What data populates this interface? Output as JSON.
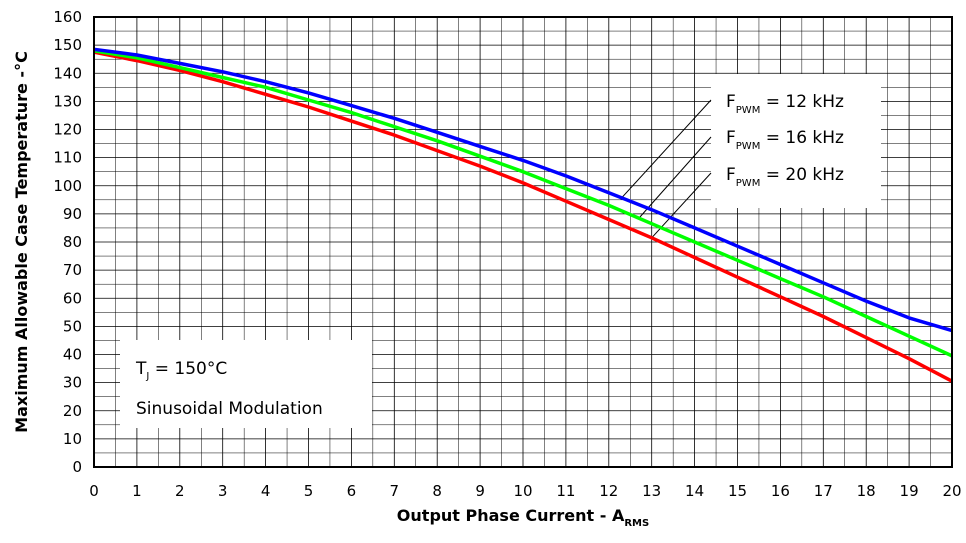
{
  "chart_data": {
    "type": "line",
    "xlabel": "Output Phase Current - A",
    "xlabel_sub": "RMS",
    "ylabel": "Maximum Allowable Case Temperature -°C",
    "xlim": [
      0,
      20
    ],
    "ylim": [
      0,
      160
    ],
    "x_ticks": [
      0,
      1,
      2,
      3,
      4,
      5,
      6,
      7,
      8,
      9,
      10,
      11,
      12,
      13,
      14,
      15,
      16,
      17,
      18,
      19,
      20
    ],
    "y_ticks": [
      0,
      10,
      20,
      30,
      40,
      50,
      60,
      70,
      80,
      90,
      100,
      110,
      120,
      130,
      140,
      150,
      160
    ],
    "grid": true,
    "x": [
      0,
      1,
      2,
      3,
      4,
      5,
      6,
      7,
      8,
      9,
      10,
      11,
      12,
      13,
      14,
      15,
      16,
      17,
      18,
      19,
      20
    ],
    "series": [
      {
        "name": "12 kHz",
        "label_prefix": "F",
        "label_sub": "PWM",
        "label_rest": " = 12 kHz",
        "color": "#0000ff",
        "values": [
          148.5,
          146.5,
          143.5,
          140.5,
          137,
          133,
          128.5,
          124,
          119,
          114,
          109,
          103.5,
          97.5,
          91.5,
          85,
          78.5,
          72,
          65.5,
          59,
          53,
          48.5
        ]
      },
      {
        "name": "16 kHz",
        "label_prefix": "F",
        "label_sub": "PWM",
        "label_rest": " = 16 kHz",
        "color": "#00ff00",
        "values": [
          148,
          145.5,
          142,
          138.5,
          135,
          130.5,
          126,
          121,
          116,
          110.5,
          105,
          99,
          93,
          86.5,
          80,
          73.5,
          67,
          60.5,
          53.5,
          46.5,
          39.5
        ]
      },
      {
        "name": "20 kHz",
        "label_prefix": "F",
        "label_sub": "PWM",
        "label_rest": " = 20 kHz",
        "color": "#ff0000",
        "values": [
          147.5,
          144.5,
          141,
          137,
          132.5,
          128,
          123,
          118,
          112.5,
          107,
          101,
          94.5,
          88,
          81.5,
          74.5,
          67.5,
          60.5,
          53.5,
          46,
          38.5,
          30.5
        ]
      }
    ],
    "annotation_lines": {
      "tj_prefix": "T",
      "tj_sub": "J",
      "tj_rest": " = 150°C",
      "modulation": "Sinusoidal Modulation"
    }
  }
}
